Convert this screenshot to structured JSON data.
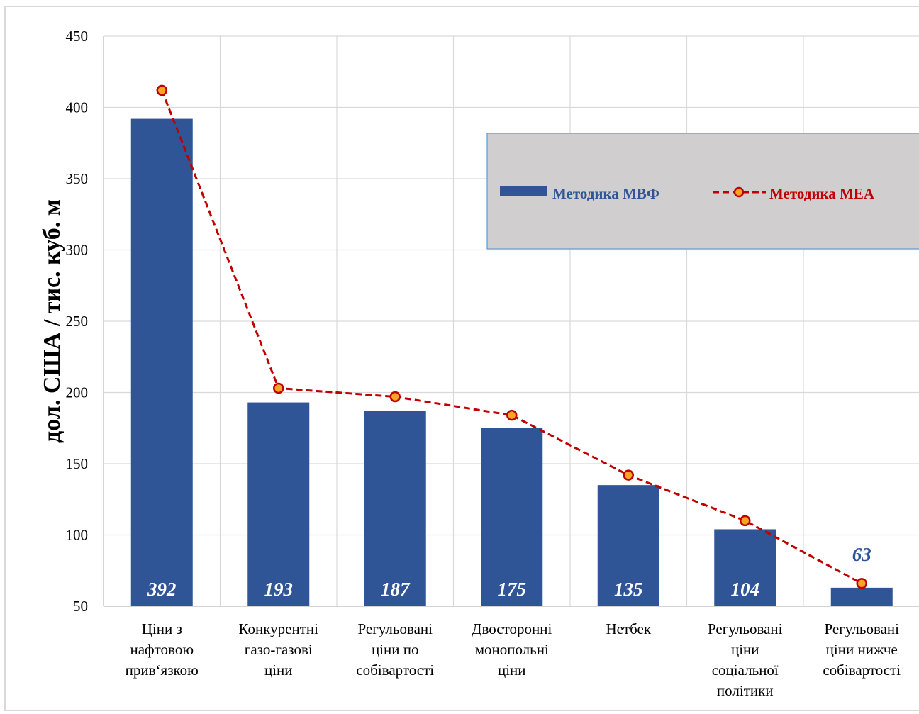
{
  "chart_data": {
    "type": "bar",
    "title": "",
    "ylabel": "дол. США / тис. куб. м",
    "xlabel": "",
    "ylim": [
      50,
      450
    ],
    "yticks": [
      50,
      100,
      150,
      200,
      250,
      300,
      350,
      400,
      450
    ],
    "grid": true,
    "legend_position": "top-right",
    "categories": [
      [
        "Ціни з",
        "нафтовою",
        "прив‘язкою"
      ],
      [
        "Конкурентні",
        "газо-газові",
        "ціни"
      ],
      [
        "Регульовані",
        "ціни по",
        "собівартості"
      ],
      [
        "Двосторонні",
        "монопольні",
        "ціни"
      ],
      [
        "Нетбек"
      ],
      [
        "Регульовані",
        "ціни",
        "соціальної",
        "політики"
      ],
      [
        "Регульовані",
        "ціни нижче",
        "собівартості"
      ]
    ],
    "series": [
      {
        "name": "Методика МВФ",
        "type": "bar",
        "color": "#2f5597",
        "values": [
          392,
          193,
          187,
          175,
          135,
          104,
          63
        ],
        "labels": [
          "392",
          "193",
          "187",
          "175",
          "135",
          "104",
          "63"
        ]
      },
      {
        "name": "Методика МЕА",
        "type": "line",
        "style": "dashed",
        "color": "#c00000",
        "marker_color": "#f5a623",
        "values": [
          412,
          203,
          197,
          184,
          142,
          110,
          66
        ]
      }
    ]
  }
}
